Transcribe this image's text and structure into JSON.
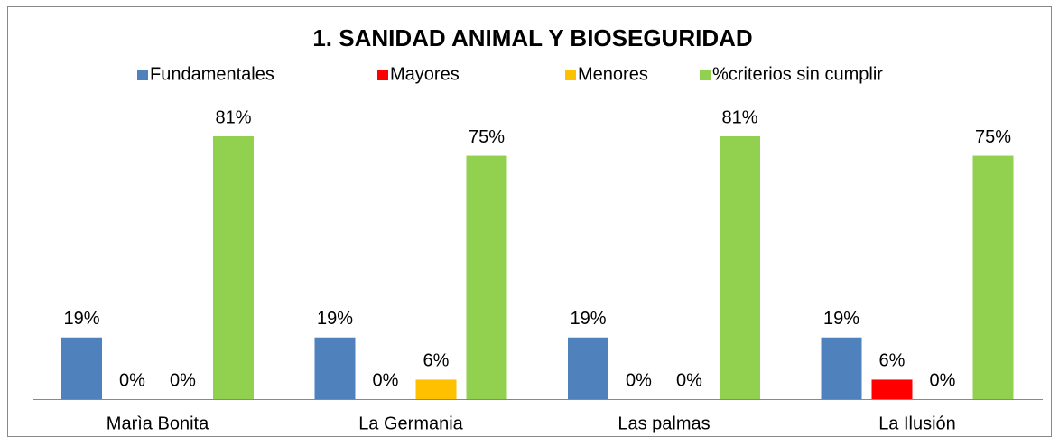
{
  "chart_data": {
    "type": "bar",
    "title": "1. SANIDAD ANIMAL Y BIOSEGURIDAD",
    "categories": [
      "Marìa Bonita",
      "La Germania",
      "Las palmas",
      "La Ilusión"
    ],
    "series": [
      {
        "name": "Fundamentales",
        "color": "#4f81bd",
        "values": [
          19,
          19,
          19,
          19
        ],
        "value_labels": [
          "19%",
          "19%",
          "19%",
          "19%"
        ]
      },
      {
        "name": "Mayores",
        "color": "#ff0000",
        "values": [
          0,
          0,
          0,
          6
        ],
        "value_labels": [
          "0%",
          "0%",
          "0%",
          "6%"
        ]
      },
      {
        "name": "Menores",
        "color": "#ffc000",
        "values": [
          0,
          6,
          0,
          0
        ],
        "value_labels": [
          "0%",
          "6%",
          "0%",
          "0%"
        ]
      },
      {
        "name": "%criterios sin cumplir",
        "color": "#92d050",
        "values": [
          81,
          75,
          81,
          75
        ],
        "value_labels": [
          "81%",
          "75%",
          "81%",
          "75%"
        ]
      }
    ],
    "legend": "top"
  }
}
